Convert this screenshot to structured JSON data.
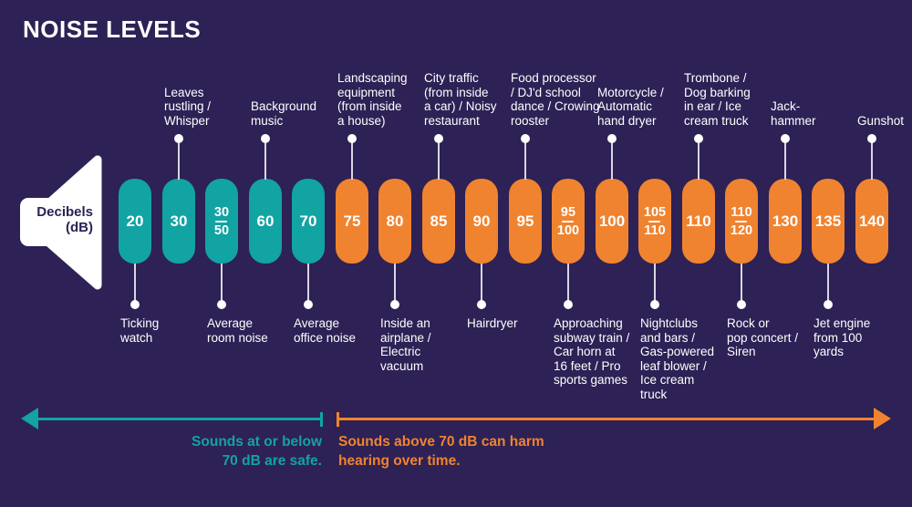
{
  "title": "NOISE LEVELS",
  "speaker_label": "Decibels\n(dB)",
  "colors": {
    "background": "#2d2155",
    "teal": "#12a3a3",
    "orange": "#f0832f",
    "connector": "#d9d6e4",
    "text": "#ffffff"
  },
  "legend": {
    "safe_text": "Sounds at or below\n70 dB are safe.",
    "harm_text": "Sounds above 70 dB can harm\nhearing over time."
  },
  "pills": [
    {
      "value": "20",
      "color": "teal",
      "label": "Ticking\nwatch",
      "label_side": "below"
    },
    {
      "value": "30",
      "color": "teal",
      "label": "Leaves\nrustling /\nWhisper",
      "label_side": "above"
    },
    {
      "value": "30/50",
      "color": "teal",
      "label": "Average\nroom noise",
      "label_side": "below"
    },
    {
      "value": "60",
      "color": "teal",
      "label": "Background\nmusic",
      "label_side": "above"
    },
    {
      "value": "70",
      "color": "teal",
      "label": "Average\noffice noise",
      "label_side": "below"
    },
    {
      "value": "75",
      "color": "orange",
      "label": "Landscaping\nequipment\n(from inside\na house)",
      "label_side": "above"
    },
    {
      "value": "80",
      "color": "orange",
      "label": "Inside an\nairplane /\nElectric\nvacuum",
      "label_side": "below"
    },
    {
      "value": "85",
      "color": "orange",
      "label": "City traffic\n(from inside\na car) / Noisy\nrestaurant",
      "label_side": "above"
    },
    {
      "value": "90",
      "color": "orange",
      "label": "Hairdryer",
      "label_side": "below"
    },
    {
      "value": "95",
      "color": "orange",
      "label": "Food processor\n/ DJ'd school\ndance / Crowing\nrooster",
      "label_side": "above"
    },
    {
      "value": "95/100",
      "color": "orange",
      "label": "Approaching\nsubway train /\nCar horn at\n16 feet / Pro\nsports games",
      "label_side": "below"
    },
    {
      "value": "100",
      "color": "orange",
      "label": "Motorcycle /\nAutomatic\nhand dryer",
      "label_side": "above"
    },
    {
      "value": "105/110",
      "color": "orange",
      "label": "Nightclubs\nand bars /\nGas-powered\nleaf blower /\nIce cream\ntruck",
      "label_side": "below"
    },
    {
      "value": "110",
      "color": "orange",
      "label": "Trombone /\nDog barking\nin ear / Ice\ncream truck",
      "label_side": "above"
    },
    {
      "value": "110/120",
      "color": "orange",
      "label": "Rock or\npop concert /\nSiren",
      "label_side": "below"
    },
    {
      "value": "130",
      "color": "orange",
      "label": "Jack-\nhammer",
      "label_side": "above"
    },
    {
      "value": "135",
      "color": "orange",
      "label": "Jet engine\nfrom 100\nyards",
      "label_side": "below"
    },
    {
      "value": "140",
      "color": "orange",
      "label": "Gunshot",
      "label_side": "above"
    }
  ]
}
